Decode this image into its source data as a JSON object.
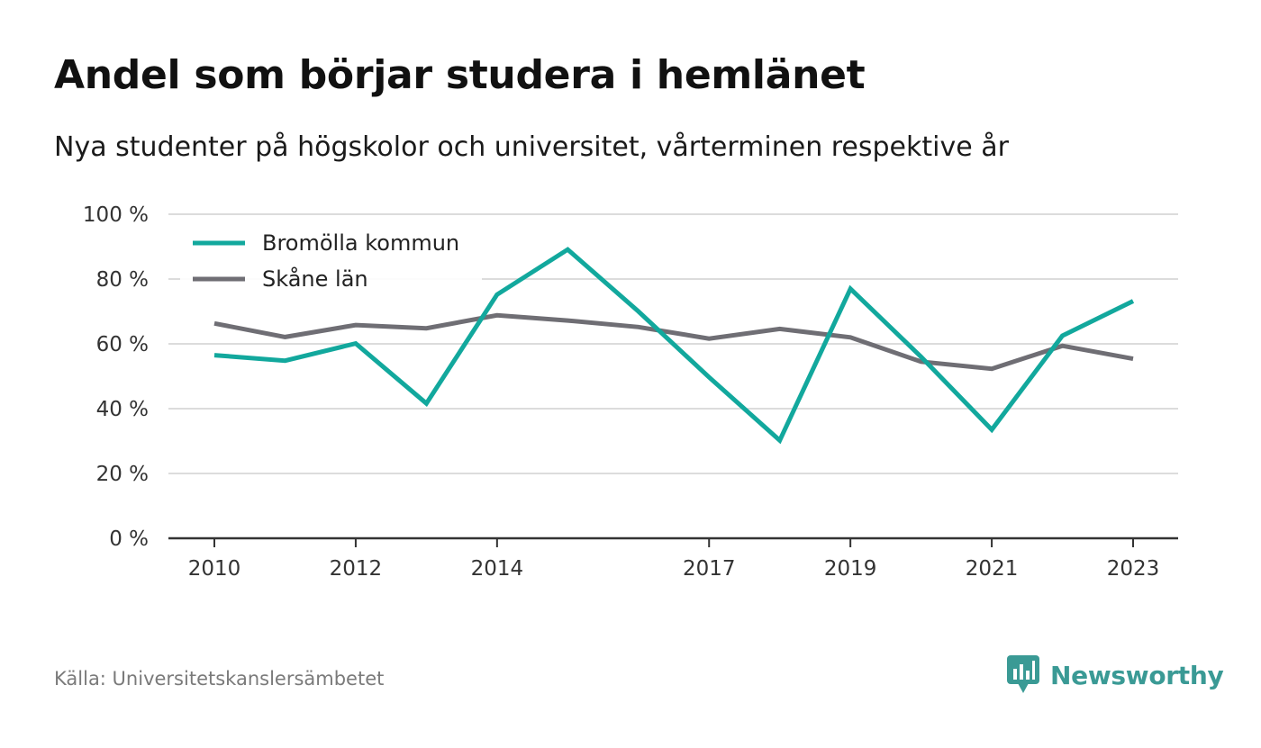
{
  "header": {
    "title": "Andel som börjar studera i hemlänet",
    "subtitle": "Nya studenter på högskolor och universitet, vårterminen respektive år"
  },
  "footer": {
    "source": "Källa: Universitetskanslersämbetet",
    "brand": "Newsworthy",
    "brand_color": "#3a9a95"
  },
  "chart_data": {
    "type": "line",
    "title": "Andel som börjar studera i hemlänet",
    "subtitle": "Nya studenter på högskolor och universitet, vårterminen respektive år",
    "x": [
      2010,
      2011,
      2012,
      2013,
      2014,
      2015,
      2016,
      2017,
      2018,
      2019,
      2020,
      2021,
      2022,
      2023
    ],
    "x_tick_labels": [
      "2010",
      "2012",
      "2014",
      "2017",
      "2019",
      "2021",
      "2023"
    ],
    "y_ticks": [
      0,
      20,
      40,
      60,
      80,
      100
    ],
    "y_tick_labels": [
      "0 %",
      "20 %",
      "40 %",
      "60 %",
      "80 %",
      "100 %"
    ],
    "ylim": [
      0,
      100
    ],
    "grid": true,
    "legend_position": "top-left",
    "series": [
      {
        "name": "Bromölla kommun",
        "color": "#12a89d",
        "values": [
          56.5,
          54.8,
          60.1,
          41.6,
          75.2,
          89.1,
          70.0,
          49.7,
          30.2,
          77.0,
          56.0,
          33.5,
          62.5,
          73.2
        ]
      },
      {
        "name": "Skåne län",
        "color": "#6f6e74",
        "values": [
          66.3,
          62.1,
          65.8,
          64.8,
          68.8,
          67.2,
          65.2,
          61.6,
          64.6,
          62.0,
          54.5,
          52.3,
          59.4,
          55.4
        ]
      }
    ]
  }
}
